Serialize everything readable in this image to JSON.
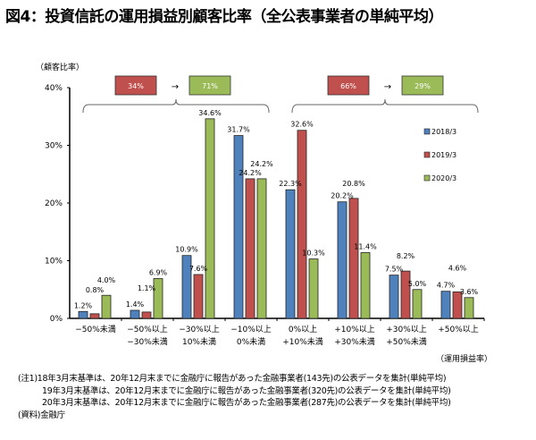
{
  "title": "図4：投資信託の運用損益別顧客比率（全公表事業者の単純平均）",
  "chart_data": {
    "type": "bar",
    "title": "図4：投資信託の運用損益別顧客比率（全公表事業者の単純平均）",
    "ylabel": "（顧客比率）",
    "xlabel": "（運用損益率）",
    "ylim": [
      0,
      40
    ],
    "yticks": [
      "0%",
      "10%",
      "20%",
      "30%",
      "40%"
    ],
    "grid": false,
    "legend_position": "right",
    "categories": [
      [
        "−50%未満"
      ],
      [
        "−50%以上",
        "−30%未満"
      ],
      [
        "−30%以上",
        "10%未満"
      ],
      [
        "−10%以上",
        "0%未満"
      ],
      [
        "0%以上",
        "+10%未満"
      ],
      [
        "+10%以上",
        "+30%未満"
      ],
      [
        "+30%以上",
        "+50%未満"
      ],
      [
        "+50%以上"
      ]
    ],
    "series": [
      {
        "name": "2018/3",
        "color": "#4f81bd",
        "values": [
          1.2,
          1.4,
          10.9,
          31.7,
          22.3,
          20.2,
          7.5,
          4.7
        ]
      },
      {
        "name": "2019/3",
        "color": "#c0504d",
        "values": [
          0.8,
          1.1,
          7.6,
          24.2,
          32.6,
          20.8,
          8.2,
          4.6
        ]
      },
      {
        "name": "2020/3",
        "color": "#9bbb59",
        "values": [
          4.0,
          6.9,
          34.6,
          24.2,
          10.3,
          11.4,
          5.0,
          3.6
        ]
      }
    ],
    "annotations": [
      {
        "range": "loss",
        "from": "34%",
        "to": "71%",
        "arrow": "→"
      },
      {
        "range": "gain",
        "from": "66%",
        "to": "29%",
        "arrow": "→"
      }
    ]
  },
  "notes": [
    "(注1)18年3月末基準は、20年12月末までに金融庁に報告があった金融事業者(143先)の公表データを集計(単純平均)",
    "19年3月末基準は、20年12月末までに金融庁に報告があった金融事業者(320先)の公表データを集計(単純平均)",
    "20年3月末基準は、20年12月末までに金融庁に報告があった金融事業者(287先)の公表データを集計(単純平均)",
    "(資料)金融庁"
  ]
}
